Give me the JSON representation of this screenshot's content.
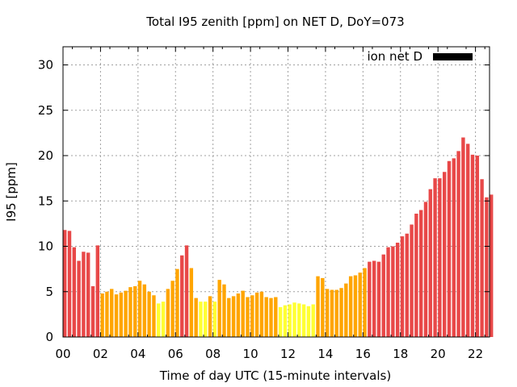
{
  "chart_data": {
    "type": "bar",
    "title": "Total I95 zenith [ppm] on NET D, DoY=073",
    "xlabel": "Time of day UTC (15-minute intervals)",
    "ylabel": "I95 [ppm]",
    "xlim": [
      0,
      22.75
    ],
    "ylim": [
      0,
      32
    ],
    "x_ticks": [
      "00",
      "02",
      "04",
      "06",
      "08",
      "10",
      "12",
      "14",
      "16",
      "18",
      "20",
      "22"
    ],
    "y_ticks": [
      "0",
      "5",
      "10",
      "15",
      "20",
      "25",
      "30"
    ],
    "grid": true,
    "legend": {
      "label": "ion net D",
      "placement": "top-right",
      "color": "#000000"
    },
    "bar_colors": {
      "low": "#ffff33",
      "medium": "#ffa500",
      "high": "#e84848"
    },
    "values": [
      11.8,
      11.7,
      9.9,
      8.4,
      9.4,
      9.3,
      5.6,
      10.1,
      4.8,
      5.0,
      5.3,
      4.7,
      4.9,
      5.1,
      5.5,
      5.6,
      6.2,
      5.8,
      5.0,
      4.6,
      3.7,
      3.9,
      5.3,
      6.2,
      7.5,
      9.0,
      10.1,
      7.6,
      4.3,
      3.9,
      3.9,
      4.5,
      3.9,
      6.3,
      5.8,
      4.3,
      4.5,
      4.8,
      5.1,
      4.4,
      4.6,
      4.9,
      5.0,
      4.4,
      4.3,
      4.4,
      3.3,
      3.5,
      3.6,
      3.8,
      3.7,
      3.6,
      3.4,
      3.6,
      6.7,
      6.5,
      5.3,
      5.2,
      5.2,
      5.4,
      5.9,
      6.7,
      6.8,
      7.1,
      7.6,
      8.3,
      8.4,
      8.3,
      9.1,
      9.9,
      10.0,
      10.4,
      11.1,
      11.4,
      12.4,
      13.6,
      14.0,
      14.9,
      16.3,
      17.5,
      17.5,
      18.2,
      19.4,
      19.7,
      20.5,
      22.0,
      21.3,
      20.1,
      20.0,
      17.4,
      15.4,
      15.7
    ],
    "levels": [
      "high",
      "high",
      "high",
      "high",
      "high",
      "high",
      "high",
      "high",
      "medium",
      "medium",
      "medium",
      "medium",
      "medium",
      "medium",
      "medium",
      "medium",
      "medium",
      "medium",
      "medium",
      "medium",
      "low",
      "low",
      "medium",
      "medium",
      "medium",
      "high",
      "high",
      "medium",
      "medium",
      "low",
      "low",
      "medium",
      "low",
      "medium",
      "medium",
      "medium",
      "medium",
      "medium",
      "medium",
      "medium",
      "medium",
      "medium",
      "medium",
      "medium",
      "medium",
      "medium",
      "low",
      "low",
      "low",
      "low",
      "low",
      "low",
      "low",
      "low",
      "medium",
      "medium",
      "medium",
      "medium",
      "medium",
      "medium",
      "medium",
      "medium",
      "medium",
      "medium",
      "medium",
      "high",
      "high",
      "high",
      "high",
      "high",
      "high",
      "high",
      "high",
      "high",
      "high",
      "high",
      "high",
      "high",
      "high",
      "high",
      "high",
      "high",
      "high",
      "high",
      "high",
      "high",
      "high",
      "high",
      "high",
      "high",
      "high",
      "high"
    ]
  }
}
